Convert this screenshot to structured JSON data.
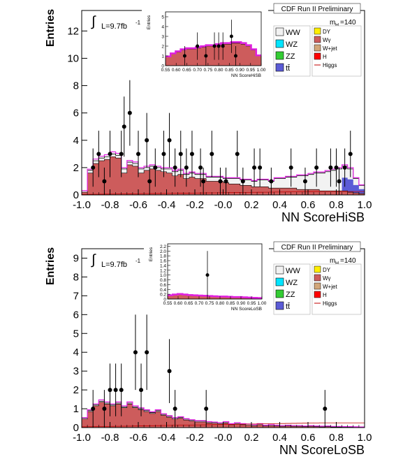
{
  "chart_data": [
    {
      "type": "histogram",
      "header": "CDF Run II Preliminary",
      "lumi_label": "L=9.7fb",
      "lumi_sup": "-1",
      "mass_label": "m",
      "mass_sub": "H",
      "mass_value": "=140",
      "ylabel": "Entries",
      "xlabel": "NN ScoreHiSB",
      "x_range": [
        -1.0,
        1.0
      ],
      "y_range": [
        0,
        13.5
      ],
      "x_ticks": [
        "-1.0",
        "-0.8",
        "-0.6",
        "-0.4",
        "-0.2",
        "-0.0",
        "0.2",
        "0.4",
        "0.6",
        "0.8",
        "1.0"
      ],
      "y_ticks": [
        "0",
        "2",
        "4",
        "6",
        "8",
        "10",
        "12"
      ],
      "legend_left": [
        "WW",
        "WZ",
        "ZZ",
        "tt̄"
      ],
      "legend_right": [
        "DY",
        "Wγ",
        "W+jet",
        "H",
        "Higgs"
      ],
      "bin_width": 0.04,
      "bin_edges_start": -1.0,
      "background_total": [
        0.3,
        1.8,
        2.5,
        2.7,
        2.8,
        3.0,
        2.9,
        1.9,
        2.4,
        2.3,
        1.9,
        2.0,
        2.1,
        2.0,
        1.9,
        1.9,
        1.7,
        1.8,
        1.5,
        1.6,
        1.5,
        1.5,
        1.3,
        1.3,
        1.3,
        1.2,
        1.2,
        1.2,
        1.1,
        1.1,
        1.0,
        1.1,
        1.1,
        1.0,
        1.2,
        1.2,
        1.3,
        1.3,
        1.4,
        1.4,
        1.5,
        1.6,
        1.6,
        1.7,
        1.8,
        1.9,
        2.1,
        1.9,
        1.2,
        0.7
      ],
      "wgamma": [
        0.2,
        1.6,
        2.3,
        2.5,
        2.6,
        2.8,
        2.7,
        1.6,
        2.2,
        2.1,
        1.6,
        1.8,
        1.9,
        1.8,
        1.7,
        1.6,
        1.4,
        1.5,
        1.2,
        1.3,
        1.2,
        1.2,
        1.0,
        1.0,
        1.0,
        0.9,
        0.8,
        0.8,
        0.7,
        0.7,
        0.6,
        0.6,
        0.6,
        0.5,
        0.5,
        0.5,
        0.5,
        0.5,
        0.4,
        0.4,
        0.4,
        0.4,
        0.3,
        0.3,
        0.3,
        0.3,
        0.3,
        0.2,
        0.15,
        0.1
      ],
      "data_points": [
        {
          "x": -0.92,
          "y": 2,
          "err": 1.4
        },
        {
          "x": -0.88,
          "y": 3,
          "err": 1.7
        },
        {
          "x": -0.84,
          "y": 1,
          "err": 1.0
        },
        {
          "x": -0.8,
          "y": 3,
          "err": 1.7
        },
        {
          "x": -0.72,
          "y": 3,
          "err": 1.7
        },
        {
          "x": -0.7,
          "y": 5,
          "err": 2.2
        },
        {
          "x": -0.66,
          "y": 6,
          "err": 2.4
        },
        {
          "x": -0.6,
          "y": 3,
          "err": 1.7
        },
        {
          "x": -0.54,
          "y": 4,
          "err": 2.0
        },
        {
          "x": -0.52,
          "y": 1,
          "err": 1.0
        },
        {
          "x": -0.48,
          "y": 2,
          "err": 1.4
        },
        {
          "x": -0.42,
          "y": 3,
          "err": 1.7
        },
        {
          "x": -0.38,
          "y": 4,
          "err": 2.0
        },
        {
          "x": -0.34,
          "y": 2,
          "err": 1.4
        },
        {
          "x": -0.3,
          "y": 3,
          "err": 1.7
        },
        {
          "x": -0.26,
          "y": 2,
          "err": 1.4
        },
        {
          "x": -0.22,
          "y": 3,
          "err": 1.7
        },
        {
          "x": -0.16,
          "y": 2,
          "err": 1.4
        },
        {
          "x": -0.14,
          "y": 1,
          "err": 1.0
        },
        {
          "x": -0.08,
          "y": 3,
          "err": 1.7
        },
        {
          "x": -0.02,
          "y": 1,
          "err": 1.0
        },
        {
          "x": 0.02,
          "y": 1,
          "err": 1.0
        },
        {
          "x": 0.1,
          "y": 3,
          "err": 1.7
        },
        {
          "x": 0.14,
          "y": 1,
          "err": 1.0
        },
        {
          "x": 0.22,
          "y": 2,
          "err": 1.4
        },
        {
          "x": 0.26,
          "y": 2,
          "err": 1.4
        },
        {
          "x": 0.34,
          "y": 1,
          "err": 1.0
        },
        {
          "x": 0.48,
          "y": 2,
          "err": 1.4
        },
        {
          "x": 0.58,
          "y": 1,
          "err": 1.0
        },
        {
          "x": 0.66,
          "y": 2,
          "err": 1.4
        },
        {
          "x": 0.76,
          "y": 2,
          "err": 1.4
        },
        {
          "x": 0.8,
          "y": 2,
          "err": 1.4
        },
        {
          "x": 0.82,
          "y": 1,
          "err": 1.0
        },
        {
          "x": 0.86,
          "y": 2,
          "err": 1.4
        },
        {
          "x": 0.9,
          "y": 3,
          "err": 1.7
        }
      ],
      "inset": {
        "ylabel": "Entries",
        "xlabel": "NN ScoreHiSB",
        "x_range": [
          0.55,
          1.0
        ],
        "y_range": [
          0,
          5.5
        ],
        "x_ticks": [
          "0.55",
          "0.60",
          "0.65",
          "0.70",
          "0.75",
          "0.80",
          "0.85",
          "0.90",
          "0.95",
          "1.00"
        ],
        "y_ticks": [
          "0",
          "1",
          "2",
          "3",
          "4",
          "5"
        ],
        "background_total": [
          0.9,
          1.2,
          1.4,
          1.6,
          1.7,
          1.7,
          1.8,
          1.9,
          2.0,
          2.0,
          2.1,
          2.2,
          2.2,
          2.3,
          2.3,
          2.2,
          2.0,
          1.6,
          1.0
        ],
        "data_points": [
          {
            "x": 0.64,
            "y": 1,
            "err": 1.0
          },
          {
            "x": 0.7,
            "y": 2,
            "err": 1.4
          },
          {
            "x": 0.74,
            "y": 1,
            "err": 1.0
          },
          {
            "x": 0.78,
            "y": 2,
            "err": 1.4
          },
          {
            "x": 0.8,
            "y": 2,
            "err": 1.4
          },
          {
            "x": 0.82,
            "y": 2,
            "err": 1.4
          },
          {
            "x": 0.86,
            "y": 3,
            "err": 1.7
          },
          {
            "x": 0.88,
            "y": 1,
            "err": 1.0
          }
        ]
      }
    },
    {
      "type": "histogram",
      "header": "CDF Run II Preliminary",
      "lumi_label": "L=9.7fb",
      "lumi_sup": "-1",
      "mass_label": "m",
      "mass_sub": "H",
      "mass_value": "=140",
      "ylabel": "Entries",
      "xlabel": "NN ScoreLoSB",
      "x_range": [
        -1.0,
        1.0
      ],
      "y_range": [
        0,
        9.5
      ],
      "x_ticks": [
        "-1.0",
        "-0.8",
        "-0.6",
        "-0.4",
        "-0.2",
        "-0.0",
        "0.2",
        "0.4",
        "0.6",
        "0.8",
        "1.0"
      ],
      "y_ticks": [
        "0",
        "1",
        "2",
        "3",
        "4",
        "5",
        "6",
        "7",
        "8",
        "9"
      ],
      "legend_left": [
        "WW",
        "WZ",
        "ZZ",
        "tt̄"
      ],
      "legend_right": [
        "DY",
        "Wγ",
        "W+jet",
        "H",
        "Higgs"
      ],
      "bin_width": 0.04,
      "bin_edges_start": -1.0,
      "background_total": [
        0.5,
        0.9,
        1.2,
        1.4,
        1.3,
        1.2,
        1.3,
        1.1,
        1.3,
        1.1,
        1.0,
        0.9,
        0.8,
        0.9,
        0.7,
        0.6,
        0.5,
        0.55,
        0.45,
        0.4,
        0.35,
        0.35,
        0.3,
        0.28,
        0.25,
        0.3,
        0.2,
        0.25,
        0.2,
        0.18,
        0.15,
        0.2,
        0.12,
        0.15,
        0.12,
        0.1,
        0.12,
        0.1,
        0.1,
        0.08,
        0.1,
        0.08,
        0.07,
        0.08,
        0.06,
        0.06,
        0.05,
        0.05,
        0.04,
        0.03
      ],
      "wgamma": [
        0.45,
        0.85,
        1.15,
        1.35,
        1.25,
        1.15,
        1.25,
        1.05,
        1.25,
        1.05,
        0.95,
        0.85,
        0.75,
        0.85,
        0.65,
        0.55,
        0.45,
        0.5,
        0.4,
        0.35,
        0.3,
        0.3,
        0.25,
        0.23,
        0.2,
        0.25,
        0.15,
        0.2,
        0.15,
        0.13,
        0.1,
        0.15,
        0.08,
        0.1,
        0.08,
        0.06,
        0.08,
        0.06,
        0.06,
        0.05,
        0.06,
        0.05,
        0.04,
        0.05,
        0.03,
        0.03,
        0.02,
        0.02,
        0.02,
        0.01
      ],
      "data_points": [
        {
          "x": -0.92,
          "y": 1,
          "err": 1.0
        },
        {
          "x": -0.84,
          "y": 1,
          "err": 1.0
        },
        {
          "x": -0.8,
          "y": 2,
          "err": 1.4
        },
        {
          "x": -0.76,
          "y": 2,
          "err": 1.4
        },
        {
          "x": -0.72,
          "y": 2,
          "err": 1.4
        },
        {
          "x": -0.62,
          "y": 4,
          "err": 2.0
        },
        {
          "x": -0.58,
          "y": 2,
          "err": 1.4
        },
        {
          "x": -0.54,
          "y": 4,
          "err": 2.0
        },
        {
          "x": -0.38,
          "y": 3,
          "err": 1.7
        },
        {
          "x": -0.34,
          "y": 1,
          "err": 1.0
        },
        {
          "x": -0.12,
          "y": 1,
          "err": 1.0
        },
        {
          "x": 0.72,
          "y": 1,
          "err": 1.0
        }
      ],
      "inset": {
        "ylabel": "Entries",
        "xlabel": "NN ScoreLoSB",
        "x_range": [
          0.55,
          1.0
        ],
        "y_range": [
          0,
          2.3
        ],
        "x_ticks": [
          "0.55",
          "0.60",
          "0.65",
          "0.70",
          "0.75",
          "0.80",
          "0.85",
          "0.90",
          "0.95",
          "1.00"
        ],
        "y_ticks": [
          "0",
          "0.2",
          "0.4",
          "0.6",
          "0.8",
          "1.0",
          "1.2",
          "1.4",
          "1.6",
          "1.8",
          "2.0",
          "2.2"
        ],
        "background_total": [
          0.15,
          0.18,
          0.2,
          0.18,
          0.16,
          0.15,
          0.14,
          0.13,
          0.12,
          0.11,
          0.1,
          0.1,
          0.09,
          0.08,
          0.08,
          0.07,
          0.06,
          0.05,
          0.04
        ],
        "data_points": [
          {
            "x": 0.74,
            "y": 1,
            "err": 1.0
          }
        ]
      }
    }
  ]
}
